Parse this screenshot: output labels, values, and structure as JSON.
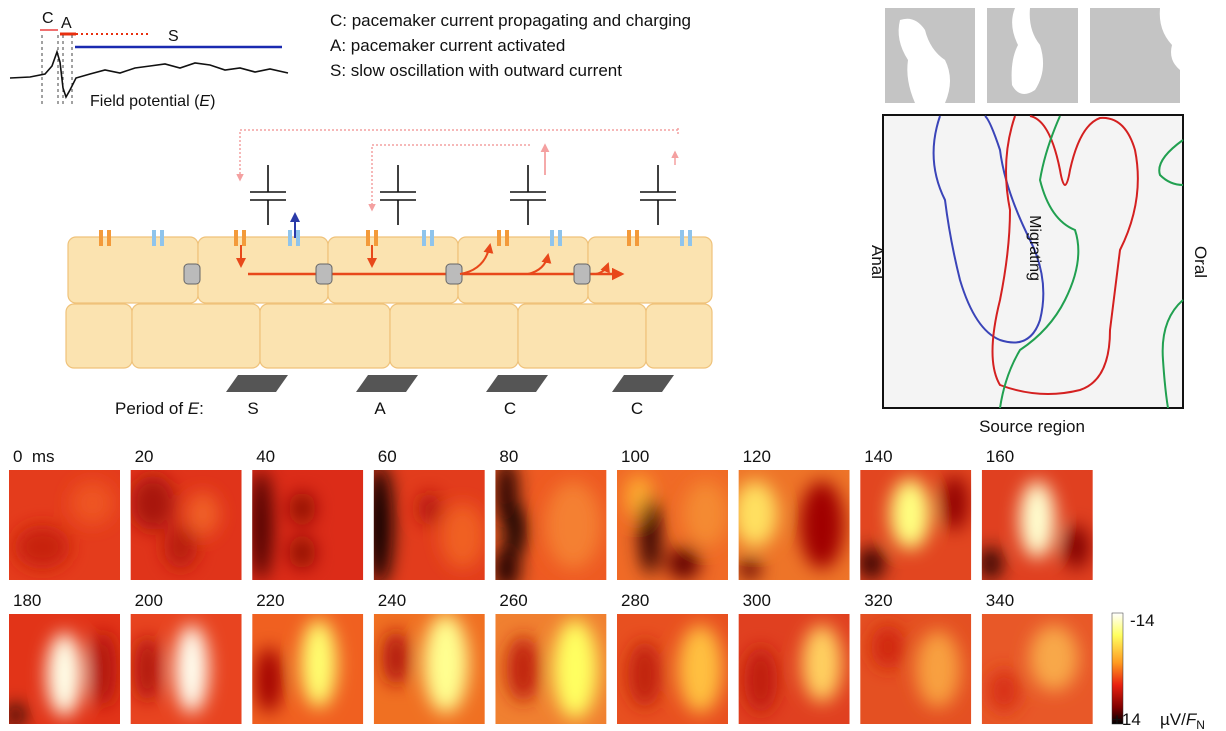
{
  "legend": {
    "labels": {
      "c": "C",
      "a": "A",
      "s": "S"
    },
    "trace_title": {
      "text": "Field potential (",
      "italic": "E",
      "close": ")"
    }
  },
  "key": [
    "C: pacemaker current propagating and charging",
    "A: pacemaker current activated",
    "S: slow oscillation with outward current"
  ],
  "cells": {
    "period_label": {
      "text": "Period of ",
      "italic": "E",
      "colon": ":"
    },
    "periods": [
      "S",
      "A",
      "C",
      "C"
    ]
  },
  "map": {
    "left": "Anal",
    "right": "Oral",
    "center": "Migrating",
    "bottom": "Source region"
  },
  "frames": [
    "0  ms",
    "20",
    "40",
    "60",
    "80",
    "100",
    "120",
    "140",
    "160",
    "180",
    "200",
    "220",
    "240",
    "260",
    "280",
    "300",
    "320",
    "340"
  ],
  "colorbar": {
    "top": "-14",
    "bottom": "+14",
    "unit": {
      "text": "µV/",
      "italic": "F",
      "sub": "N"
    }
  }
}
